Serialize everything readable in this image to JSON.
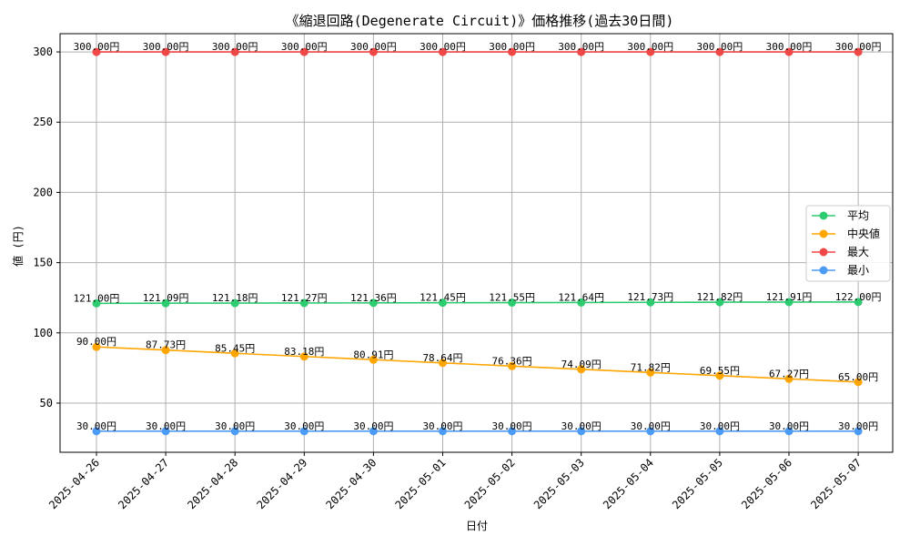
{
  "chart_data": {
    "type": "line",
    "title": "《縮退回路(Degenerate Circuit)》価格推移(過去30日間)",
    "xlabel": "日付",
    "ylabel": "値 (円)",
    "categories": [
      "2025-04-26",
      "2025-04-27",
      "2025-04-28",
      "2025-04-29",
      "2025-04-30",
      "2025-05-01",
      "2025-05-02",
      "2025-05-03",
      "2025-05-04",
      "2025-05-05",
      "2025-05-06",
      "2025-05-07"
    ],
    "ylim": [
      15,
      313
    ],
    "yticks": [
      50,
      100,
      150,
      200,
      250,
      300
    ],
    "grid": true,
    "legend_position": "center-right",
    "value_suffix": "円",
    "series": [
      {
        "name": "平均",
        "color": "#2ecc71",
        "values": [
          121.0,
          121.09,
          121.18,
          121.27,
          121.36,
          121.45,
          121.55,
          121.64,
          121.73,
          121.82,
          121.91,
          122.0
        ],
        "labels": [
          "121.00円",
          "121.09円",
          "121.18円",
          "121.27円",
          "121.36円",
          "121.45円",
          "121.55円",
          "121.64円",
          "121.73円",
          "121.82円",
          "121.91円",
          "122.00円"
        ]
      },
      {
        "name": "中央値",
        "color": "#ffa500",
        "values": [
          90.0,
          87.73,
          85.45,
          83.18,
          80.91,
          78.64,
          76.36,
          74.09,
          71.82,
          69.55,
          67.27,
          65.0
        ],
        "labels": [
          "90.00円",
          "87.73円",
          "85.45円",
          "83.18円",
          "80.91円",
          "78.64円",
          "76.36円",
          "74.09円",
          "71.82円",
          "69.55円",
          "67.27円",
          "65.00円"
        ]
      },
      {
        "name": "最大",
        "color": "#f04747",
        "values": [
          300,
          300,
          300,
          300,
          300,
          300,
          300,
          300,
          300,
          300,
          300,
          300
        ],
        "labels": [
          "300.00円",
          "300.00円",
          "300.00円",
          "300.00円",
          "300.00円",
          "300.00円",
          "300.00円",
          "300.00円",
          "300.00円",
          "300.00円",
          "300.00円",
          "300.00円"
        ]
      },
      {
        "name": "最小",
        "color": "#4c9bf5",
        "values": [
          30,
          30,
          30,
          30,
          30,
          30,
          30,
          30,
          30,
          30,
          30,
          30
        ],
        "labels": [
          "30.00円",
          "30.00円",
          "30.00円",
          "30.00円",
          "30.00円",
          "30.00円",
          "30.00円",
          "30.00円",
          "30.00円",
          "30.00円",
          "30.00円",
          "30.00円"
        ]
      }
    ]
  }
}
